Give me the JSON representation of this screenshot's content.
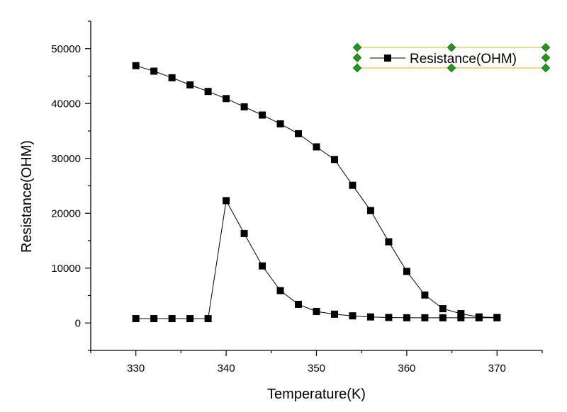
{
  "chart_data": {
    "type": "line",
    "xlabel": "Temperature(K)",
    "ylabel": "Resistance(OHM)",
    "xlim": [
      325,
      375
    ],
    "ylim": [
      -5000,
      55000
    ],
    "xticks": [
      330,
      340,
      350,
      360,
      370
    ],
    "yticks": [
      0,
      10000,
      20000,
      30000,
      40000,
      50000
    ],
    "grid": false,
    "legend": {
      "position": "top-right",
      "selected": true
    },
    "series": [
      {
        "name": "Resistance(OHM)",
        "color": "#000000",
        "marker": "square",
        "x": [
          330,
          332,
          334,
          336,
          338,
          340,
          342,
          344,
          346,
          348,
          350,
          352,
          354,
          356,
          358,
          360,
          362,
          364,
          366,
          368,
          370
        ],
        "y": [
          800,
          800,
          800,
          800,
          800,
          22300,
          16300,
          10400,
          5900,
          3400,
          2100,
          1600,
          1300,
          1100,
          1000,
          950,
          950,
          950,
          950,
          950,
          950
        ]
      },
      {
        "name": "",
        "color": "#000000",
        "marker": "square",
        "x": [
          330,
          332,
          334,
          336,
          338,
          340,
          342,
          344,
          346,
          348,
          350,
          352,
          354,
          356,
          358,
          360,
          362,
          364,
          366,
          368,
          370
        ],
        "y": [
          46900,
          45900,
          44700,
          43400,
          42200,
          40900,
          39400,
          37900,
          36300,
          34500,
          32100,
          29800,
          25100,
          20500,
          14800,
          9400,
          5100,
          2600,
          1700,
          1100,
          1000
        ]
      }
    ]
  }
}
